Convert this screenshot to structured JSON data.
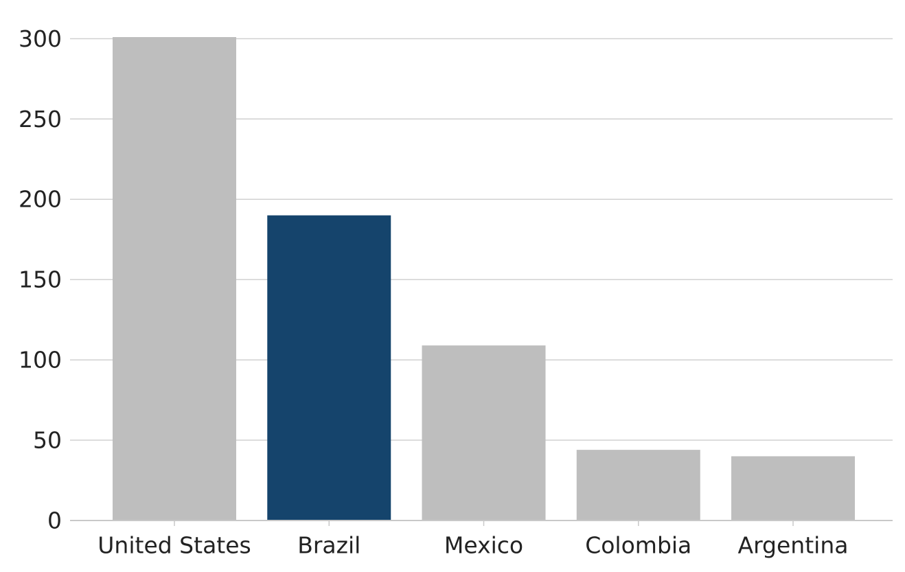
{
  "chart_data": {
    "type": "bar",
    "categories": [
      "United States",
      "Brazil",
      "Mexico",
      "Colombia",
      "Argentina"
    ],
    "values": [
      301,
      190,
      109,
      44,
      40
    ],
    "colors": [
      "#bebebe",
      "#15446c",
      "#bebebe",
      "#bebebe",
      "#bebebe"
    ],
    "ylim": [
      0,
      301
    ],
    "yticks": [
      0,
      50,
      100,
      150,
      200,
      250,
      300
    ],
    "grid": true
  }
}
